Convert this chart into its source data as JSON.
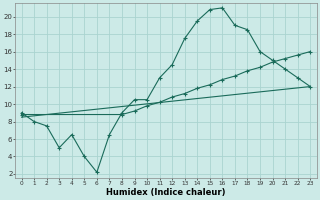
{
  "xlabel": "Humidex (Indice chaleur)",
  "bg_color": "#cceae7",
  "grid_color": "#aad4d0",
  "line_color": "#1a6b5a",
  "xlim": [
    -0.5,
    23.5
  ],
  "ylim": [
    1.5,
    21.5
  ],
  "xticks": [
    0,
    1,
    2,
    3,
    4,
    5,
    6,
    7,
    8,
    9,
    10,
    11,
    12,
    13,
    14,
    15,
    16,
    17,
    18,
    19,
    20,
    21,
    22,
    23
  ],
  "yticks": [
    2,
    4,
    6,
    8,
    10,
    12,
    14,
    16,
    18,
    20
  ],
  "line1_x": [
    0,
    1,
    2,
    3,
    4,
    5,
    6,
    7,
    8,
    9,
    10,
    11,
    12,
    13,
    14,
    15,
    16,
    17,
    18,
    19,
    20,
    21,
    22,
    23
  ],
  "line1_y": [
    9.0,
    8.0,
    7.5,
    5.0,
    6.5,
    4.0,
    2.2,
    6.5,
    9.0,
    10.5,
    10.5,
    13.0,
    14.5,
    17.5,
    19.5,
    20.8,
    21.0,
    19.0,
    18.5,
    16.0,
    15.0,
    14.0,
    13.0,
    12.0
  ],
  "line2_x": [
    0,
    8,
    9,
    10,
    11,
    12,
    13,
    14,
    15,
    16,
    17,
    18,
    19,
    20,
    21,
    22,
    23
  ],
  "line2_y": [
    8.8,
    8.8,
    9.2,
    9.8,
    10.2,
    10.8,
    11.2,
    11.8,
    12.2,
    12.8,
    13.2,
    13.8,
    14.2,
    14.8,
    15.2,
    15.6,
    16.0
  ],
  "line3_x": [
    0,
    23
  ],
  "line3_y": [
    8.5,
    12.0
  ]
}
